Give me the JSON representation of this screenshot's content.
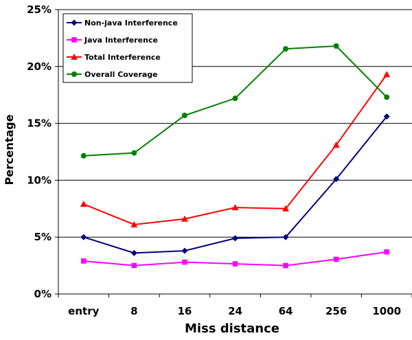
{
  "chart_data": {
    "type": "line",
    "title": "",
    "xlabel": "Miss distance",
    "ylabel": "Percentage",
    "categories": [
      "entry",
      "8",
      "16",
      "24",
      "64",
      "256",
      "1000"
    ],
    "ylim": [
      0,
      25
    ],
    "y_ticks": [
      "0%",
      "5%",
      "10%",
      "15%",
      "20%",
      "25%"
    ],
    "y_tick_values": [
      0,
      5,
      10,
      15,
      20,
      25
    ],
    "grid": "horizontal",
    "legend_position": "top-left",
    "series": [
      {
        "name": "Non-java Interference",
        "color": "#000080",
        "marker": "diamond",
        "values": [
          5.0,
          3.6,
          3.8,
          4.9,
          5.0,
          10.1,
          15.6
        ]
      },
      {
        "name": "Java Interference",
        "color": "#ff00ff",
        "marker": "square",
        "values": [
          2.9,
          2.5,
          2.8,
          2.65,
          2.5,
          3.05,
          3.7
        ]
      },
      {
        "name": "Total Interference",
        "color": "#ff0000",
        "marker": "triangle",
        "values": [
          7.9,
          6.1,
          6.6,
          7.6,
          7.5,
          13.1,
          19.3
        ]
      },
      {
        "name": "Overall Coverage",
        "color": "#008000",
        "marker": "circle",
        "values": [
          12.15,
          12.4,
          15.7,
          17.2,
          21.55,
          21.8,
          17.3
        ]
      }
    ]
  }
}
